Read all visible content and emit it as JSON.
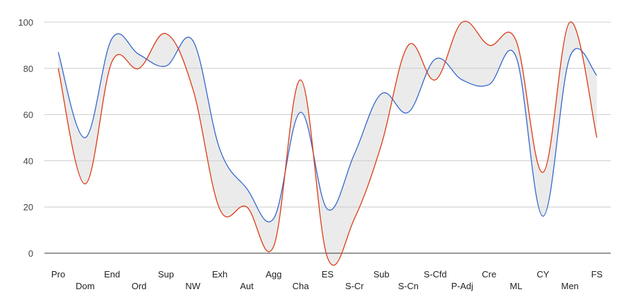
{
  "chart_data": {
    "type": "line",
    "categories": [
      "Pro",
      "Dom",
      "End",
      "Ord",
      "Sup",
      "NW",
      "Exh",
      "Aut",
      "Agg",
      "Cha",
      "ES",
      "S-Cr",
      "Sub",
      "S-Cn",
      "S-Cfd",
      "P-Adj",
      "Cre",
      "ML",
      "CY",
      "Men",
      "FS"
    ],
    "series": [
      {
        "color": "#3366cc",
        "values": [
          87,
          50,
          93,
          86,
          81,
          92,
          45,
          28,
          15,
          61,
          19,
          43,
          69,
          61,
          84,
          75,
          73,
          85,
          16,
          85,
          77
        ]
      },
      {
        "color": "#dc3912",
        "values": [
          80,
          30,
          83,
          80,
          95,
          71,
          19,
          20,
          3,
          75,
          -2,
          15,
          47,
          90,
          75,
          100,
          90,
          92,
          35,
          100,
          50
        ]
      }
    ],
    "band_fill": "#ebebeb",
    "ylim": [
      0,
      100
    ],
    "yticks": [
      0,
      20,
      40,
      60,
      80,
      100
    ],
    "grid": true,
    "legend": "none"
  }
}
